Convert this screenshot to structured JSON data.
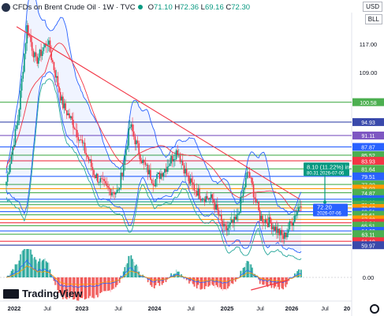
{
  "header": {
    "title": "CFDs on Brent Crude Oil · 1W · TVC",
    "open_label": "O",
    "open": "71.10",
    "high_label": "H",
    "high": "72.36",
    "low_label": "L",
    "low": "69.16",
    "close_label": "C",
    "close": "72.30",
    "currency": "USD",
    "sell_buy": "BLL"
  },
  "brand": {
    "name": "TradingView"
  },
  "colors": {
    "up": "#089981",
    "down": "#f23645",
    "trendline": "#f23645",
    "blue_band": "#2962ff",
    "bg": "#ffffff"
  },
  "chart_data": {
    "type": "candlestick",
    "x_ticks": [
      "2022",
      "Jul",
      "2023",
      "Jul",
      "2024",
      "Jul",
      "2025",
      "Jul",
      "2026",
      "Jul",
      "20"
    ],
    "y_ticks": [
      117.0,
      109.0
    ],
    "ylim": [
      58,
      126
    ],
    "levels": [
      {
        "value": 100.58,
        "color": "#4caf50"
      },
      {
        "value": 94.93,
        "color": "#3949ab"
      },
      {
        "value": 91.11,
        "color": "#7e57c2"
      },
      {
        "value": 87.87,
        "color": "#2962ff"
      },
      {
        "value": 85.52,
        "color": "#4caf50"
      },
      {
        "value": 83.93,
        "color": "#f23645"
      },
      {
        "value": 81.64,
        "color": "#4caf50"
      },
      {
        "value": 79.51,
        "color": "#2962ff"
      },
      {
        "value": 77.22,
        "color": "#4caf50"
      },
      {
        "value": 76.03,
        "color": "#ff9800"
      },
      {
        "value": 74.87,
        "color": "#4caf50"
      },
      {
        "value": 73.03,
        "color": "#2962ff"
      },
      {
        "value": 72.3,
        "color": "#089981"
      },
      {
        "value": 71.49,
        "color": "#4caf50"
      },
      {
        "value": 70.53,
        "color": "#ff9800"
      },
      {
        "value": 69.51,
        "color": "#2962ff"
      },
      {
        "value": 68.61,
        "color": "#4caf50"
      },
      {
        "value": 67.3,
        "color": "#ff9800"
      },
      {
        "value": 66.34,
        "color": "#f23645"
      },
      {
        "value": 65.51,
        "color": "#4caf50"
      },
      {
        "value": 64.03,
        "color": "#2962ff"
      },
      {
        "value": 63.11,
        "color": "#4caf50"
      },
      {
        "value": 61.1,
        "color": "#f23645"
      },
      {
        "value": 59.97,
        "color": "#3949ab"
      }
    ],
    "price_anchors": [
      {
        "t": 0.0,
        "p": 78
      },
      {
        "t": 0.04,
        "p": 96
      },
      {
        "t": 0.07,
        "p": 122
      },
      {
        "t": 0.1,
        "p": 112
      },
      {
        "t": 0.14,
        "p": 118
      },
      {
        "t": 0.19,
        "p": 100
      },
      {
        "t": 0.23,
        "p": 94
      },
      {
        "t": 0.27,
        "p": 86
      },
      {
        "t": 0.3,
        "p": 80
      },
      {
        "t": 0.34,
        "p": 76
      },
      {
        "t": 0.38,
        "p": 75
      },
      {
        "t": 0.42,
        "p": 94
      },
      {
        "t": 0.46,
        "p": 84
      },
      {
        "t": 0.5,
        "p": 78
      },
      {
        "t": 0.54,
        "p": 82
      },
      {
        "t": 0.58,
        "p": 87
      },
      {
        "t": 0.62,
        "p": 78
      },
      {
        "t": 0.66,
        "p": 74
      },
      {
        "t": 0.7,
        "p": 73
      },
      {
        "t": 0.74,
        "p": 64
      },
      {
        "t": 0.78,
        "p": 67
      },
      {
        "t": 0.82,
        "p": 81
      },
      {
        "t": 0.86,
        "p": 68
      },
      {
        "t": 0.9,
        "p": 66
      },
      {
        "t": 0.94,
        "p": 62
      },
      {
        "t": 0.97,
        "p": 67
      },
      {
        "t": 1.0,
        "p": 72.3
      }
    ],
    "trendline": {
      "from_date": "2022-03",
      "from_price": 122,
      "to_date": "2026-02",
      "to_price": 73
    },
    "measure": {
      "change_text": "8.10 (11.22%) in",
      "from_text": "80.31",
      "date_text": "2026-07-06",
      "target_text": "72.20",
      "target_date": "2026-07-06"
    },
    "indicator": {
      "zero_label": "0.00"
    }
  }
}
